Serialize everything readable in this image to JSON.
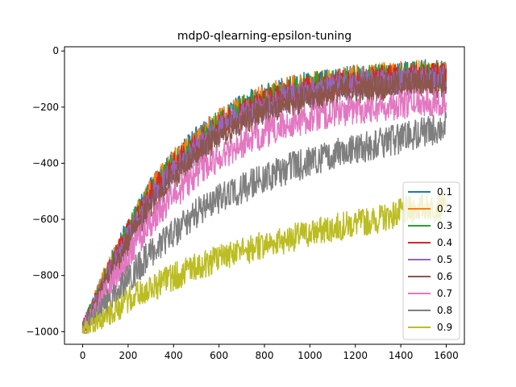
{
  "chart_data": {
    "type": "line",
    "title": "mdp0-qlearning-epsilon-tuning",
    "xlabel": "",
    "ylabel": "",
    "xlim": [
      -80,
      1680
    ],
    "ylim": [
      -1045,
      15
    ],
    "xticks": [
      0,
      200,
      400,
      600,
      800,
      1000,
      1200,
      1400,
      1600
    ],
    "yticks": [
      0,
      -200,
      -400,
      -600,
      -800,
      -1000
    ],
    "xtick_labels": [
      "0",
      "200",
      "400",
      "600",
      "800",
      "1000",
      "1200",
      "1400",
      "1600"
    ],
    "ytick_labels": [
      "0",
      "−200",
      "−400",
      "−600",
      "−800",
      "−1000"
    ],
    "grid": false,
    "legend_position": "lower right",
    "x_start": 0,
    "x_end": 1600,
    "series": [
      {
        "name": "0.1",
        "color": "#1f77b4",
        "noise": 50,
        "trend": [
          [
            0,
            -990
          ],
          [
            50,
            -900
          ],
          [
            100,
            -800
          ],
          [
            200,
            -640
          ],
          [
            300,
            -500
          ],
          [
            400,
            -400
          ],
          [
            500,
            -320
          ],
          [
            600,
            -255
          ],
          [
            700,
            -200
          ],
          [
            800,
            -165
          ],
          [
            900,
            -140
          ],
          [
            1000,
            -120
          ],
          [
            1100,
            -110
          ],
          [
            1200,
            -100
          ],
          [
            1300,
            -95
          ],
          [
            1400,
            -88
          ],
          [
            1500,
            -80
          ],
          [
            1600,
            -85
          ]
        ]
      },
      {
        "name": "0.2",
        "color": "#ff7f0e",
        "noise": 50,
        "trend": [
          [
            0,
            -990
          ],
          [
            50,
            -900
          ],
          [
            100,
            -800
          ],
          [
            200,
            -640
          ],
          [
            300,
            -500
          ],
          [
            400,
            -400
          ],
          [
            500,
            -320
          ],
          [
            600,
            -255
          ],
          [
            700,
            -205
          ],
          [
            800,
            -170
          ],
          [
            900,
            -140
          ],
          [
            1000,
            -125
          ],
          [
            1100,
            -110
          ],
          [
            1200,
            -100
          ],
          [
            1300,
            -92
          ],
          [
            1400,
            -85
          ],
          [
            1500,
            -80
          ],
          [
            1600,
            -80
          ]
        ]
      },
      {
        "name": "0.3",
        "color": "#2ca02c",
        "noise": 50,
        "trend": [
          [
            0,
            -990
          ],
          [
            50,
            -905
          ],
          [
            100,
            -810
          ],
          [
            200,
            -650
          ],
          [
            300,
            -510
          ],
          [
            400,
            -410
          ],
          [
            500,
            -330
          ],
          [
            600,
            -260
          ],
          [
            700,
            -210
          ],
          [
            800,
            -175
          ],
          [
            900,
            -148
          ],
          [
            1000,
            -128
          ],
          [
            1100,
            -115
          ],
          [
            1200,
            -105
          ],
          [
            1300,
            -98
          ],
          [
            1400,
            -90
          ],
          [
            1500,
            -85
          ],
          [
            1600,
            -90
          ]
        ]
      },
      {
        "name": "0.4",
        "color": "#d62728",
        "noise": 50,
        "trend": [
          [
            0,
            -990
          ],
          [
            50,
            -905
          ],
          [
            100,
            -810
          ],
          [
            200,
            -650
          ],
          [
            300,
            -515
          ],
          [
            400,
            -415
          ],
          [
            500,
            -335
          ],
          [
            600,
            -270
          ],
          [
            700,
            -220
          ],
          [
            800,
            -185
          ],
          [
            900,
            -155
          ],
          [
            1000,
            -135
          ],
          [
            1100,
            -120
          ],
          [
            1200,
            -110
          ],
          [
            1300,
            -102
          ],
          [
            1400,
            -95
          ],
          [
            1500,
            -90
          ],
          [
            1600,
            -95
          ]
        ]
      },
      {
        "name": "0.5",
        "color": "#9467bd",
        "noise": 50,
        "trend": [
          [
            0,
            -990
          ],
          [
            50,
            -910
          ],
          [
            100,
            -820
          ],
          [
            200,
            -665
          ],
          [
            300,
            -530
          ],
          [
            400,
            -430
          ],
          [
            500,
            -350
          ],
          [
            600,
            -285
          ],
          [
            700,
            -235
          ],
          [
            800,
            -200
          ],
          [
            900,
            -170
          ],
          [
            1000,
            -150
          ],
          [
            1100,
            -135
          ],
          [
            1200,
            -122
          ],
          [
            1300,
            -115
          ],
          [
            1400,
            -108
          ],
          [
            1500,
            -102
          ],
          [
            1600,
            -105
          ]
        ]
      },
      {
        "name": "0.6",
        "color": "#8c564b",
        "noise": 50,
        "trend": [
          [
            0,
            -990
          ],
          [
            50,
            -915
          ],
          [
            100,
            -830
          ],
          [
            200,
            -680
          ],
          [
            300,
            -550
          ],
          [
            400,
            -450
          ],
          [
            500,
            -370
          ],
          [
            600,
            -305
          ],
          [
            700,
            -255
          ],
          [
            800,
            -220
          ],
          [
            900,
            -190
          ],
          [
            1000,
            -170
          ],
          [
            1100,
            -152
          ],
          [
            1200,
            -140
          ],
          [
            1300,
            -130
          ],
          [
            1400,
            -122
          ],
          [
            1500,
            -115
          ],
          [
            1600,
            -118
          ]
        ]
      },
      {
        "name": "0.7",
        "color": "#e377c2",
        "noise": 52,
        "trend": [
          [
            0,
            -995
          ],
          [
            50,
            -930
          ],
          [
            100,
            -860
          ],
          [
            200,
            -730
          ],
          [
            300,
            -610
          ],
          [
            400,
            -520
          ],
          [
            500,
            -440
          ],
          [
            600,
            -380
          ],
          [
            700,
            -330
          ],
          [
            800,
            -295
          ],
          [
            900,
            -262
          ],
          [
            1000,
            -240
          ],
          [
            1100,
            -222
          ],
          [
            1200,
            -210
          ],
          [
            1300,
            -200
          ],
          [
            1400,
            -192
          ],
          [
            1500,
            -180
          ],
          [
            1600,
            -180
          ]
        ]
      },
      {
        "name": "0.8",
        "color": "#7f7f7f",
        "noise": 55,
        "trend": [
          [
            0,
            -995
          ],
          [
            50,
            -945
          ],
          [
            100,
            -900
          ],
          [
            200,
            -810
          ],
          [
            300,
            -720
          ],
          [
            400,
            -650
          ],
          [
            500,
            -580
          ],
          [
            600,
            -530
          ],
          [
            700,
            -490
          ],
          [
            800,
            -455
          ],
          [
            900,
            -420
          ],
          [
            1000,
            -395
          ],
          [
            1100,
            -370
          ],
          [
            1200,
            -350
          ],
          [
            1300,
            -330
          ],
          [
            1400,
            -310
          ],
          [
            1500,
            -290
          ],
          [
            1600,
            -270
          ]
        ]
      },
      {
        "name": "0.9",
        "color": "#bcbd22",
        "noise": 50,
        "trend": [
          [
            0,
            -995
          ],
          [
            50,
            -970
          ],
          [
            100,
            -945
          ],
          [
            200,
            -890
          ],
          [
            300,
            -845
          ],
          [
            400,
            -805
          ],
          [
            500,
            -770
          ],
          [
            600,
            -740
          ],
          [
            700,
            -715
          ],
          [
            800,
            -690
          ],
          [
            900,
            -670
          ],
          [
            1000,
            -650
          ],
          [
            1100,
            -630
          ],
          [
            1200,
            -615
          ],
          [
            1300,
            -600
          ],
          [
            1400,
            -575
          ],
          [
            1500,
            -555
          ],
          [
            1600,
            -555
          ]
        ]
      }
    ]
  }
}
